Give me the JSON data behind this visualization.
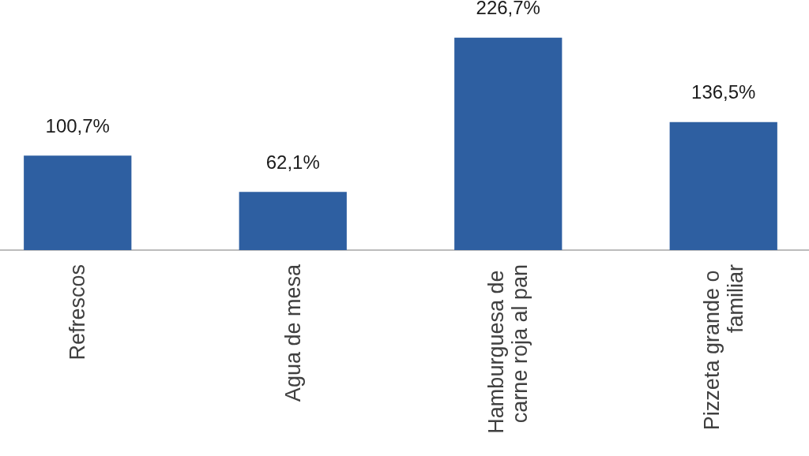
{
  "chart_data": {
    "type": "bar",
    "categories": [
      "Refrescos",
      "Agua de mesa",
      "Hamburguesa de carne roja al pan",
      "Pizzeta grande o familiar"
    ],
    "values": [
      100.7,
      62.1,
      226.7,
      136.5
    ],
    "color": "#2e5fa1",
    "value_labels": [
      "100,7%",
      "62,1%",
      "226,7%",
      "136,5%"
    ],
    "tick_labels": "x"
  }
}
